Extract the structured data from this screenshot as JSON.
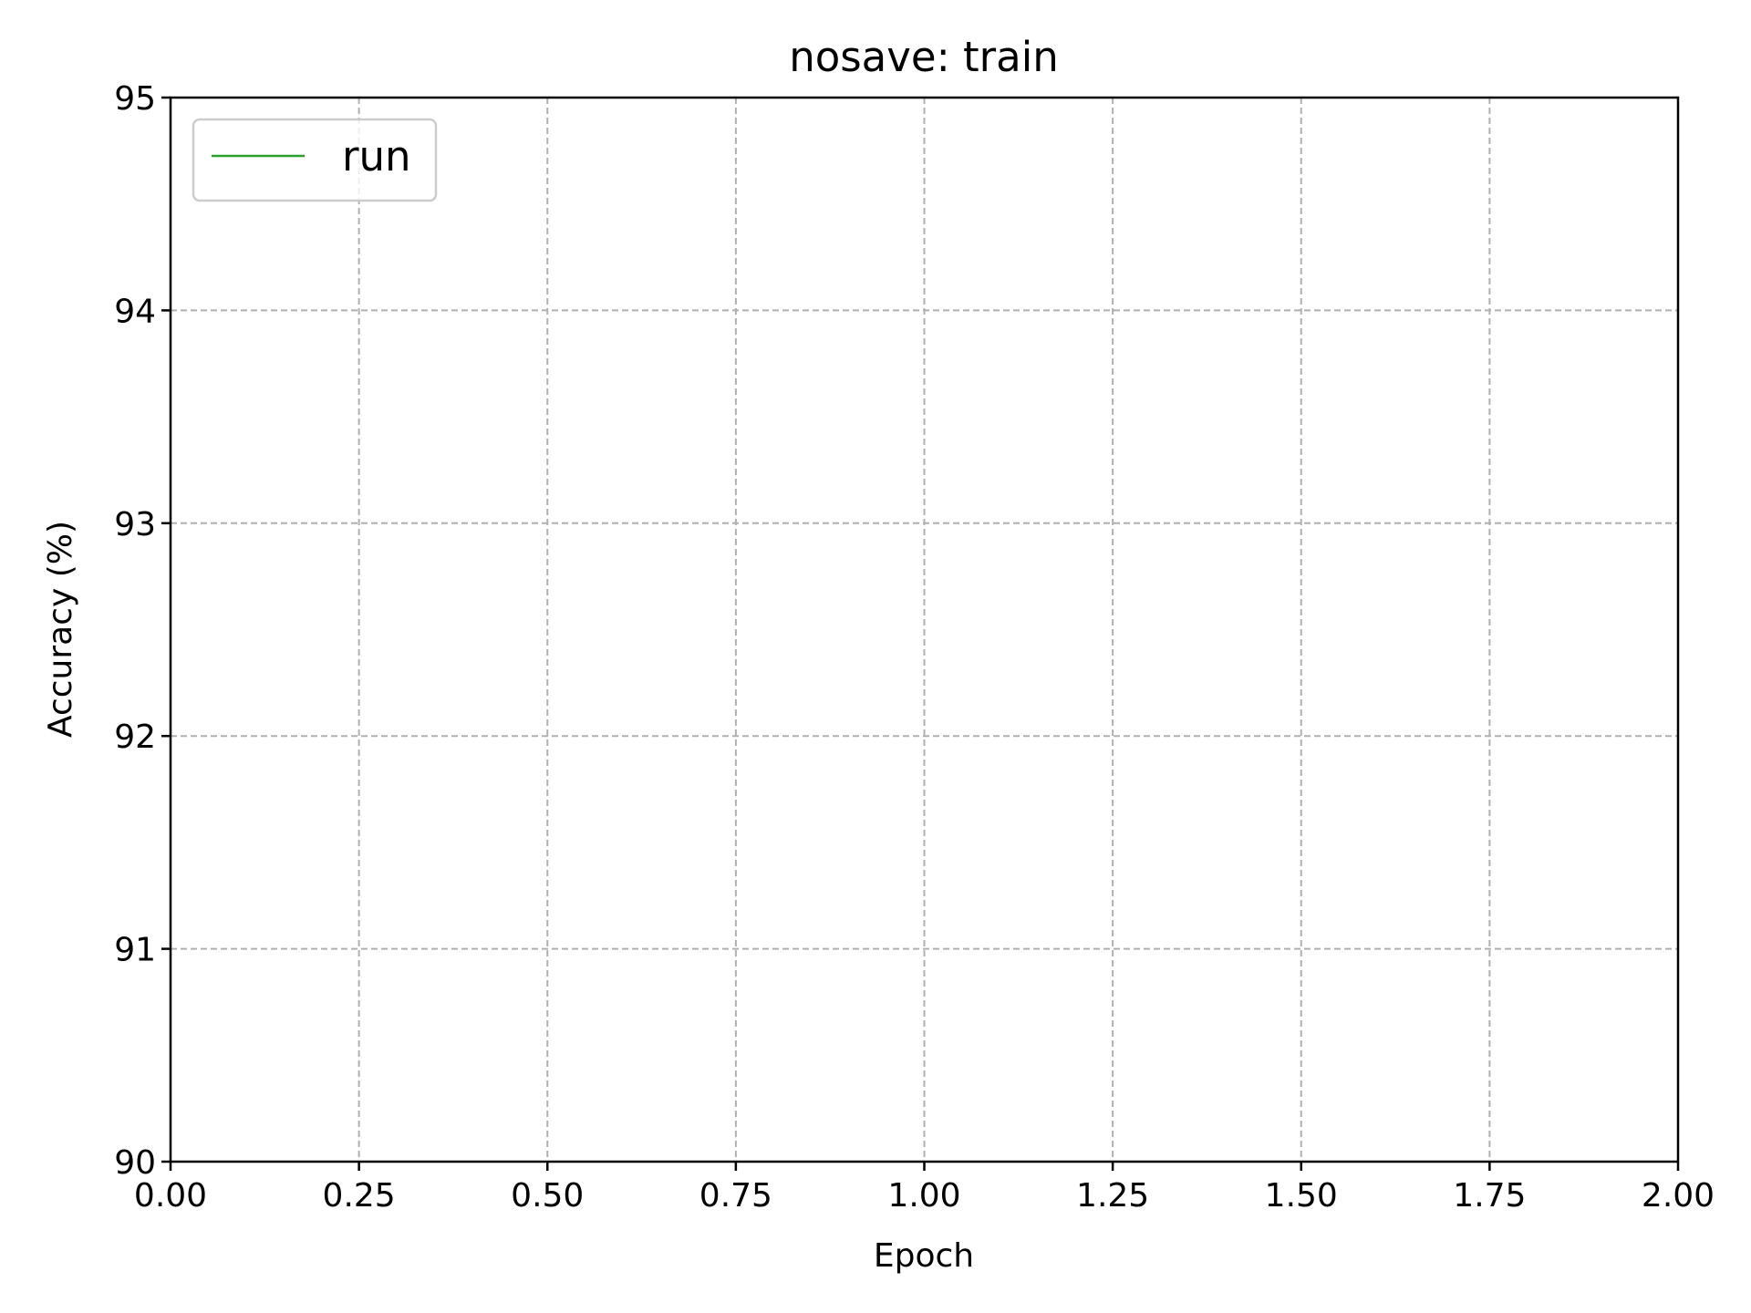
{
  "chart_data": {
    "type": "line",
    "title": "nosave: train",
    "xlabel": "Epoch",
    "ylabel": "Accuracy (%)",
    "xlim": [
      0,
      2
    ],
    "ylim": [
      90,
      95
    ],
    "x_ticks": [
      "0.00",
      "0.25",
      "0.50",
      "0.75",
      "1.00",
      "1.25",
      "1.50",
      "1.75",
      "2.00"
    ],
    "y_ticks": [
      "90",
      "91",
      "92",
      "93",
      "94",
      "95"
    ],
    "grid": true,
    "grid_style": "dashed",
    "legend_position": "upper-left",
    "series": [
      {
        "name": "run",
        "color": "#2ca02c",
        "x": [],
        "y": []
      }
    ]
  }
}
